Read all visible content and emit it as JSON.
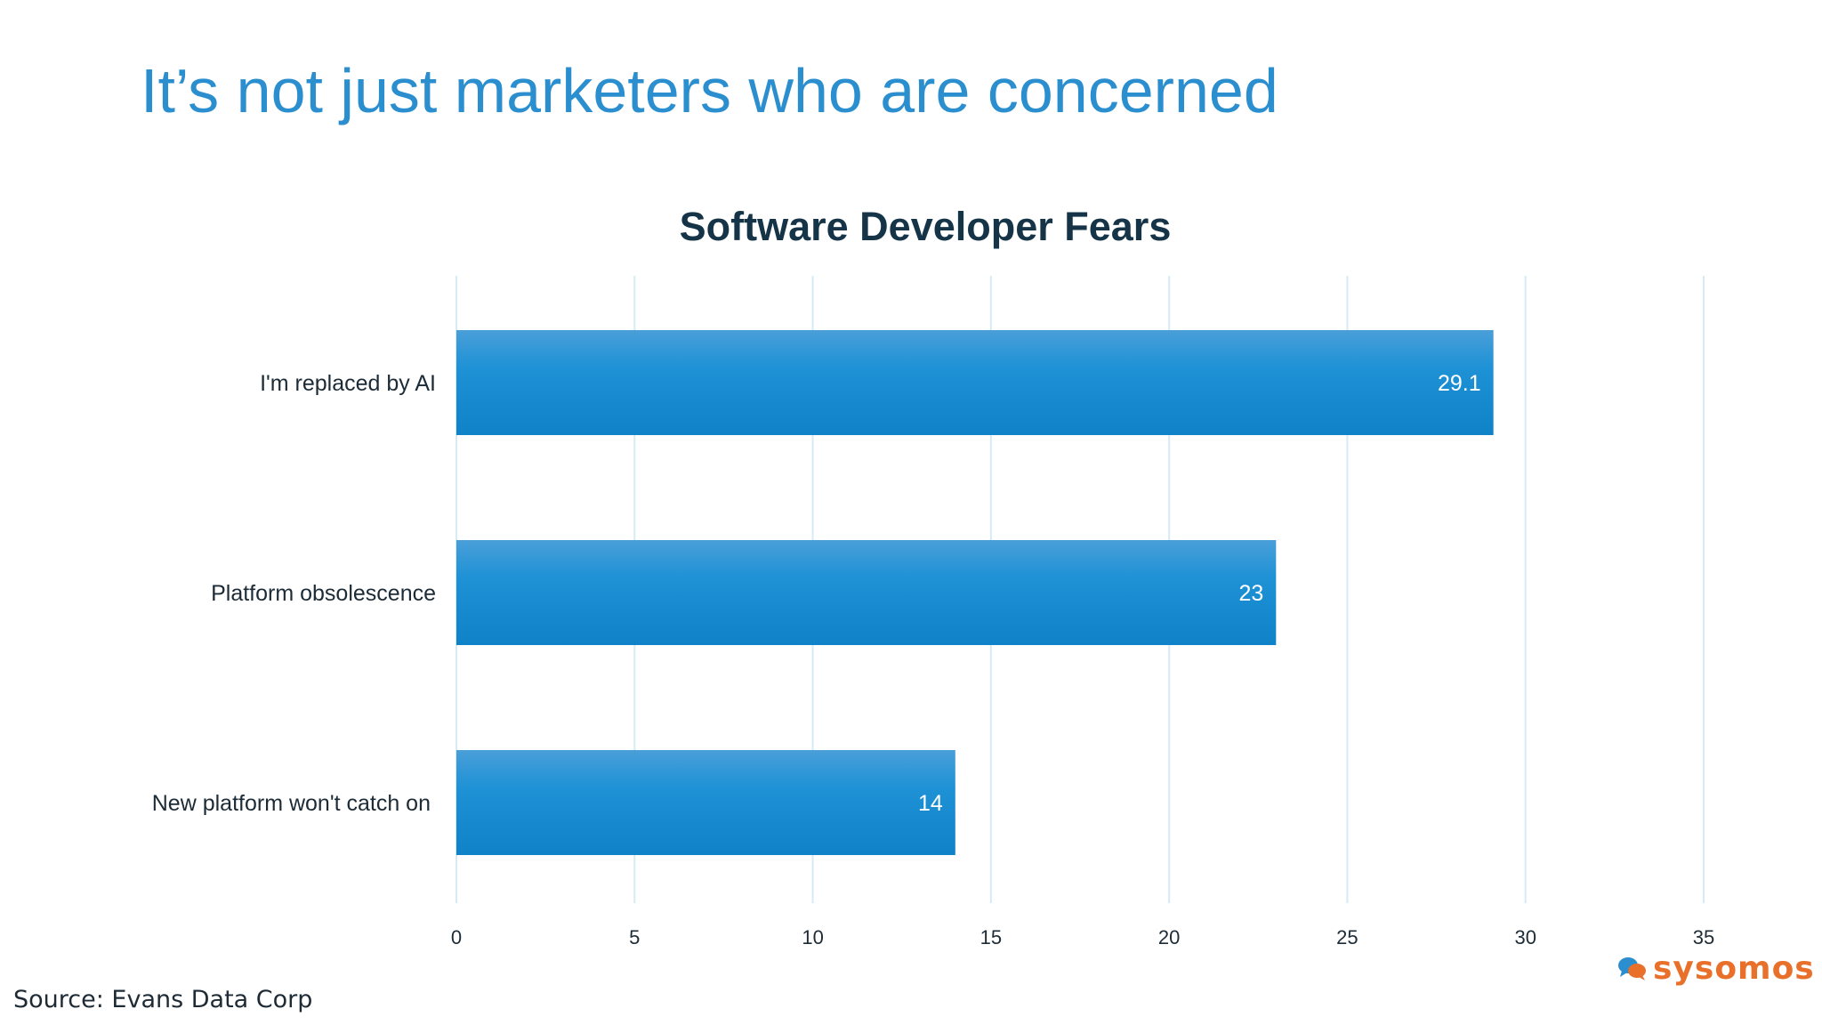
{
  "slide": {
    "title": "It’s not just marketers who are concerned",
    "source": "Source: Evans Data Corp",
    "logo_text": "sysomos"
  },
  "colors": {
    "title": "#2b8fcf",
    "bar_top": "#4a9fd8",
    "bar_bottom": "#0f82c8",
    "grid": "#d6ebf5",
    "logo_orange": "#e8702a",
    "logo_blue": "#2b8fcf"
  },
  "chart_data": {
    "type": "bar",
    "orientation": "horizontal",
    "title": "Software Developer Fears",
    "categories": [
      "I'm replaced by AI",
      "Platform obsolescence",
      "New platform won't catch on"
    ],
    "values": [
      29.1,
      23,
      14
    ],
    "data_labels": [
      "29.1",
      "23",
      "14"
    ],
    "xlim": [
      0,
      35
    ],
    "ticks": [
      0,
      5,
      10,
      15,
      20,
      25,
      30,
      35
    ],
    "tick_labels": [
      "0",
      "5",
      "10",
      "15",
      "20",
      "25",
      "30",
      "35"
    ],
    "grid": true,
    "xlabel": "",
    "ylabel": ""
  }
}
